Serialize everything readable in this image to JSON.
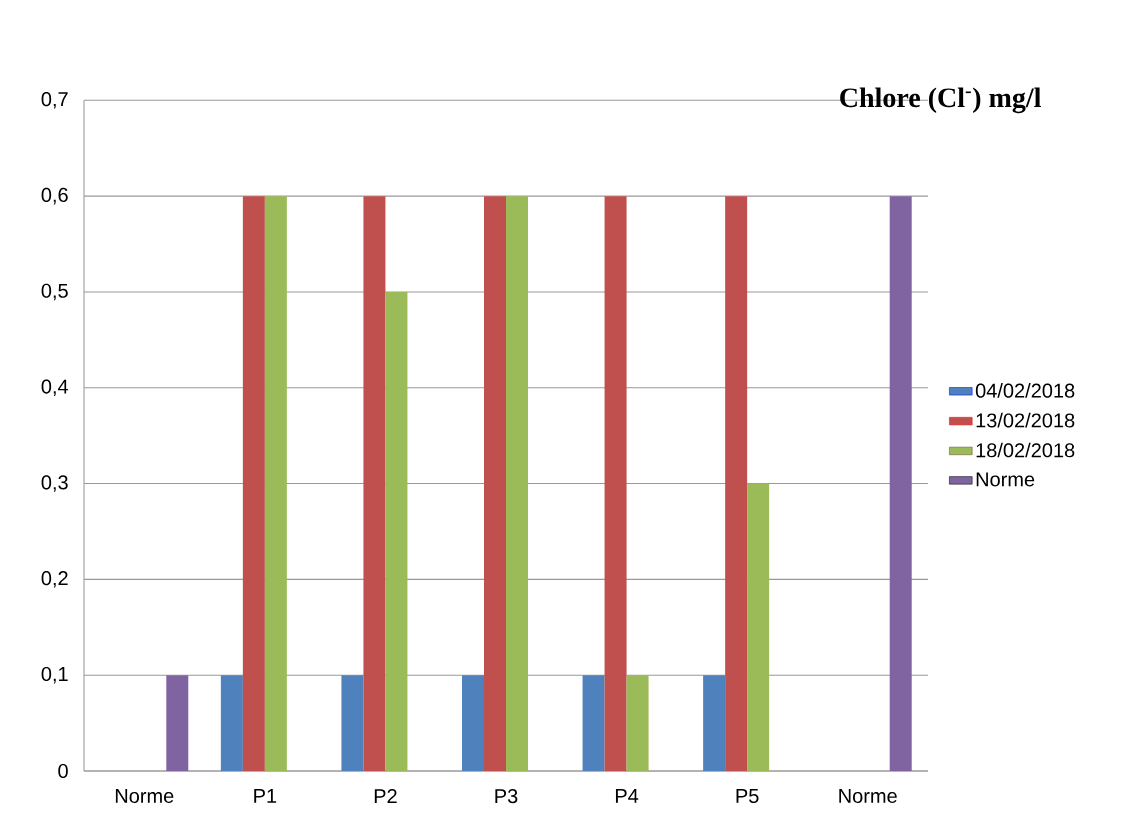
{
  "chart_data": {
    "type": "bar",
    "title": "**Chlore (Cl$^{-}$) mg/l**",
    "categories": [
      "Norme",
      "P1",
      "P2",
      "P3",
      "P4",
      "P5",
      "Norme"
    ],
    "series": [
      {
        "name": "04/02/2018",
        "color": "#4f81bd",
        "values": [
          null,
          0.1,
          0.1,
          0.1,
          0.1,
          0.1,
          null
        ]
      },
      {
        "name": "13/02/2018",
        "color": "#c0504d",
        "values": [
          null,
          0.6,
          0.6,
          0.6,
          0.6,
          0.6,
          null
        ]
      },
      {
        "name": "18/02/2018",
        "color": "#9bbb59",
        "values": [
          null,
          0.6,
          0.5,
          0.6,
          0.1,
          0.3,
          null
        ]
      },
      {
        "name": "Norme",
        "color": "#8064a2",
        "values": [
          0.1,
          null,
          null,
          null,
          null,
          null,
          0.6
        ]
      }
    ],
    "ylim": [
      0,
      0.7
    ],
    "yticks": [
      0,
      {
        "value": 0.1,
        "label": "0,1"
      },
      {
        "value": 0.2,
        "label": "0,2"
      },
      {
        "value": 0.3,
        "label": "0,3"
      },
      {
        "value": 0.4,
        "label": "0,4"
      },
      {
        "value": 0.5,
        "label": "0,5"
      },
      {
        "value": 0.6,
        "label": "0,6"
      },
      {
        "value": 0.7,
        "label": "0,7"
      }
    ],
    "grid": "y",
    "legend": "right"
  }
}
